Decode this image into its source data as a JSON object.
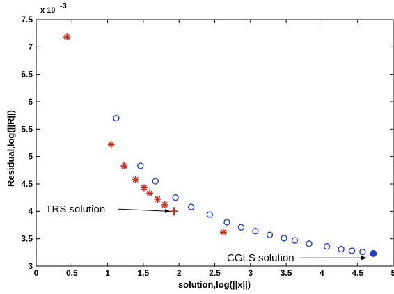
{
  "chart_data": {
    "type": "scatter",
    "title": "",
    "xlabel": "solution,log(||x||)",
    "ylabel": "Residual,log(||R||)",
    "xlim": [
      0,
      5
    ],
    "ylim": [
      3,
      7.5
    ],
    "y_exponent_label": "x 10",
    "y_exponent_power": "-3",
    "x_ticks": [
      "0",
      "0.5",
      "1",
      "1.5",
      "2",
      "2.5",
      "3",
      "3.5",
      "4",
      "4.5",
      "5"
    ],
    "y_ticks": [
      "3",
      "3.5",
      "4",
      "4.5",
      "5",
      "5.5",
      "6",
      "6.5",
      "7",
      "7.5"
    ],
    "grid": false,
    "series": [
      {
        "marker": "asterisk",
        "color": "#d42a1e",
        "points": [
          [
            0.43,
            7.18
          ],
          [
            1.05,
            5.22
          ],
          [
            1.23,
            4.83
          ],
          [
            1.39,
            4.58
          ],
          [
            1.51,
            4.43
          ],
          [
            1.59,
            4.33
          ],
          [
            1.7,
            4.22
          ],
          [
            1.8,
            4.12
          ],
          [
            2.62,
            3.62
          ]
        ]
      },
      {
        "marker": "circle",
        "color": "#1f3fbf",
        "points": [
          [
            1.12,
            5.7
          ],
          [
            1.46,
            4.83
          ],
          [
            1.67,
            4.55
          ],
          [
            1.95,
            4.25
          ],
          [
            2.17,
            4.08
          ],
          [
            2.43,
            3.94
          ],
          [
            2.67,
            3.8
          ],
          [
            2.87,
            3.71
          ],
          [
            3.07,
            3.64
          ],
          [
            3.27,
            3.57
          ],
          [
            3.47,
            3.51
          ],
          [
            3.62,
            3.47
          ],
          [
            3.82,
            3.41
          ],
          [
            4.07,
            3.36
          ],
          [
            4.27,
            3.31
          ],
          [
            4.42,
            3.28
          ],
          [
            4.57,
            3.26
          ]
        ]
      },
      {
        "marker": "plus",
        "color": "#d42a1e",
        "points": [
          [
            1.93,
            4.0
          ]
        ]
      },
      {
        "marker": "filled-circle",
        "color": "#1f3fbf",
        "points": [
          [
            4.72,
            3.23
          ]
        ]
      }
    ],
    "annotations": [
      {
        "text": "TRS solution",
        "text_x": 0.13,
        "text_y": 4.04,
        "arrow_from": [
          1.14,
          4.04
        ],
        "arrow_to": [
          1.87,
          4.0
        ]
      },
      {
        "text": "CGLS solution",
        "text_x": 2.67,
        "text_y": 3.15,
        "arrow_from": [
          3.69,
          3.15
        ],
        "arrow_to": [
          4.62,
          3.15
        ]
      }
    ]
  }
}
